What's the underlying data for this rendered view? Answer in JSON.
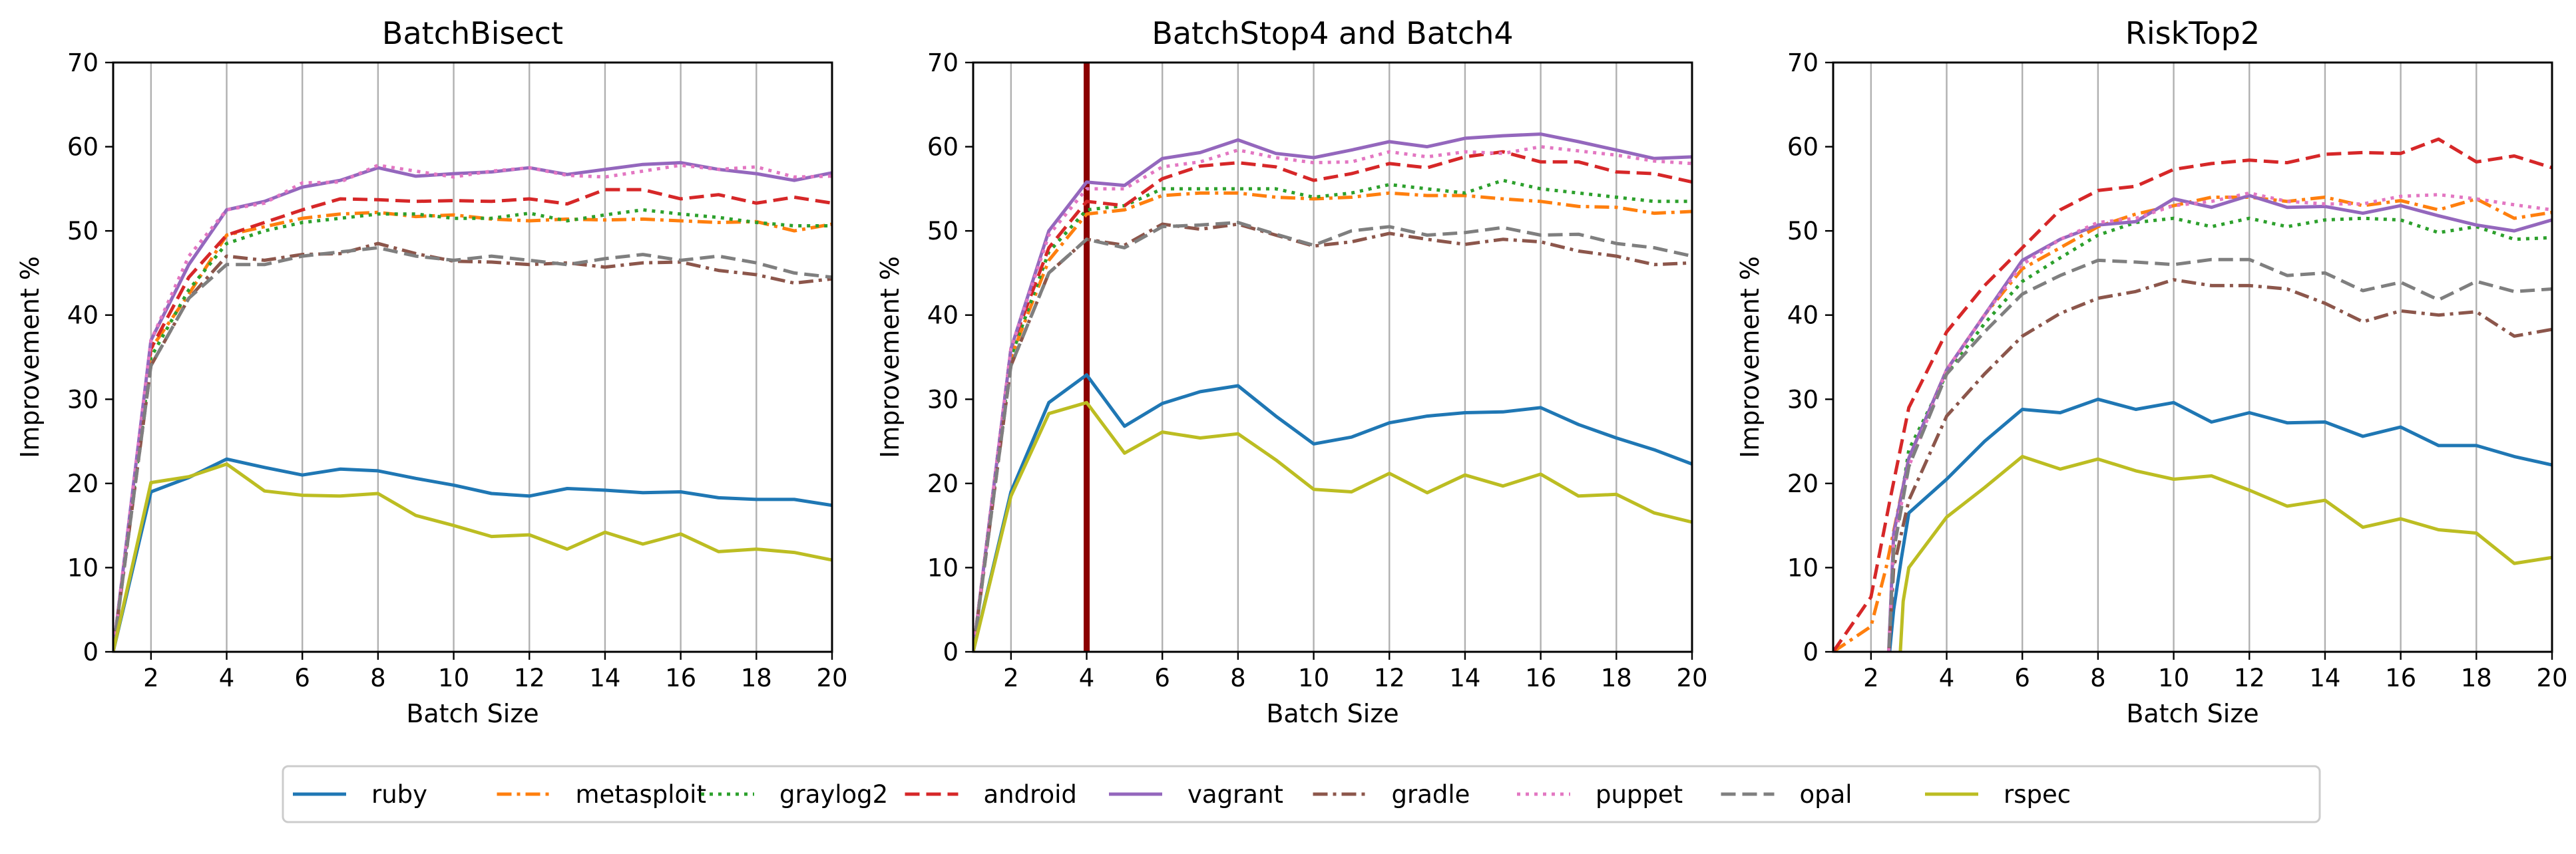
{
  "colors": {
    "ruby": "#1f77b4",
    "metasploit": "#ff7f0e",
    "graylog2": "#2ca02c",
    "android": "#d62728",
    "vagrant": "#9467bd",
    "gradle": "#8c564b",
    "puppet": "#e377c2",
    "opal": "#7f7f7f",
    "rspec": "#bcbd22"
  },
  "styles": {
    "ruby": "solid",
    "metasploit": "dashdot",
    "graylog2": "dotted",
    "android": "dashed",
    "vagrant": "solid",
    "gradle": "dashdot",
    "puppet": "dotted",
    "opal": "dashed",
    "rspec": "solid"
  },
  "legend": [
    "ruby",
    "metasploit",
    "graylog2",
    "android",
    "vagrant",
    "gradle",
    "puppet",
    "opal",
    "rspec"
  ],
  "chart_data": [
    {
      "type": "line",
      "title": "BatchBisect",
      "xlabel": "Batch Size",
      "ylabel": "Improvement %",
      "xlim": [
        1,
        20
      ],
      "ylim": [
        0,
        70
      ],
      "xticks": [
        2,
        4,
        6,
        8,
        10,
        12,
        14,
        16,
        18,
        20
      ],
      "yticks": [
        0,
        10,
        20,
        30,
        40,
        50,
        60,
        70
      ],
      "grid": "vertical",
      "x": [
        1,
        2,
        3,
        4,
        5,
        6,
        7,
        8,
        9,
        10,
        11,
        12,
        13,
        14,
        15,
        16,
        17,
        18,
        19,
        20
      ],
      "series": [
        {
          "name": "ruby",
          "values": [
            0,
            19,
            20.7,
            22.9,
            21.9,
            21,
            21.7,
            21.5,
            20.6,
            19.8,
            18.8,
            18.5,
            19.4,
            19.2,
            18.9,
            19,
            18.3,
            18.1,
            18.1,
            17.4
          ]
        },
        {
          "name": "metasploit",
          "values": [
            0,
            36,
            42.5,
            49.5,
            50.5,
            51.5,
            52,
            52.2,
            51.7,
            51.9,
            51.4,
            51.2,
            51.4,
            51.3,
            51.4,
            51.2,
            51,
            51.1,
            50,
            50.8
          ]
        },
        {
          "name": "graylog2",
          "values": [
            0,
            35,
            43,
            48.5,
            50,
            51,
            51.5,
            52,
            52,
            51.5,
            51.5,
            52.1,
            51.2,
            51.9,
            52.5,
            52,
            51.6,
            51,
            50.6,
            50.6
          ]
        },
        {
          "name": "android",
          "values": [
            0,
            36,
            44.5,
            49.5,
            51,
            52.5,
            53.8,
            53.7,
            53.5,
            53.6,
            53.5,
            53.8,
            53.2,
            54.9,
            54.9,
            53.8,
            54.3,
            53.3,
            54,
            53.3
          ]
        },
        {
          "name": "vagrant",
          "values": [
            0,
            37,
            46,
            52.5,
            53.5,
            55.2,
            56,
            57.5,
            56.5,
            56.8,
            57,
            57.5,
            56.7,
            57.3,
            57.9,
            58.1,
            57.3,
            56.8,
            56,
            56.9
          ]
        },
        {
          "name": "gradle",
          "values": [
            0,
            34,
            42,
            47,
            46.5,
            47.2,
            47.3,
            48.5,
            47.3,
            46.4,
            46.3,
            46,
            46.2,
            45.7,
            46.2,
            46.3,
            45.3,
            44.8,
            43.8,
            44.3
          ]
        },
        {
          "name": "puppet",
          "values": [
            0,
            37,
            47,
            52.5,
            53.3,
            55.7,
            55.8,
            57.8,
            57.1,
            56.4,
            57.1,
            57.5,
            56.6,
            56.4,
            57.1,
            57.8,
            57.3,
            57.6,
            56.4,
            56.5
          ]
        },
        {
          "name": "opal",
          "values": [
            0,
            34,
            42,
            46,
            46,
            47,
            47.5,
            48,
            47,
            46.5,
            47,
            46.5,
            46,
            46.7,
            47.2,
            46.5,
            47,
            46.2,
            45,
            44.5
          ]
        },
        {
          "name": "rspec",
          "values": [
            0,
            20.1,
            20.8,
            22.3,
            19.1,
            18.6,
            18.5,
            18.8,
            16.2,
            15,
            13.7,
            13.9,
            12.2,
            14.2,
            12.8,
            14,
            11.9,
            12.2,
            11.8,
            10.9
          ]
        }
      ]
    },
    {
      "type": "line",
      "title": "BatchStop4 and Batch4",
      "xlabel": "Batch Size",
      "ylabel": "Improvement %",
      "xlim": [
        1,
        20
      ],
      "ylim": [
        0,
        70
      ],
      "xticks": [
        2,
        4,
        6,
        8,
        10,
        12,
        14,
        16,
        18,
        20
      ],
      "yticks": [
        0,
        10,
        20,
        30,
        40,
        50,
        60,
        70
      ],
      "grid": "vertical",
      "vline": 4,
      "x": [
        1,
        2,
        3,
        4,
        5,
        6,
        7,
        8,
        9,
        10,
        11,
        12,
        13,
        14,
        15,
        16,
        17,
        18,
        19,
        20
      ],
      "series": [
        {
          "name": "ruby",
          "values": [
            0,
            19,
            29.6,
            32.9,
            26.8,
            29.5,
            30.9,
            31.6,
            28,
            24.7,
            25.5,
            27.2,
            28,
            28.4,
            28.5,
            29,
            27,
            25.4,
            24,
            22.3
          ]
        },
        {
          "name": "metasploit",
          "values": [
            0,
            35,
            46.5,
            52,
            52.5,
            54.2,
            54.5,
            54.5,
            54,
            53.8,
            54,
            54.5,
            54.2,
            54.2,
            53.8,
            53.5,
            52.9,
            52.8,
            52.1,
            52.3
          ]
        },
        {
          "name": "graylog2",
          "values": [
            0,
            35,
            47.5,
            52.5,
            53,
            55,
            55,
            55,
            55,
            54,
            54.5,
            55.5,
            55,
            54.5,
            56,
            55,
            54.5,
            54,
            53.5,
            53.5
          ]
        },
        {
          "name": "android",
          "values": [
            0,
            36,
            48,
            53.5,
            53,
            56.2,
            57.7,
            58.1,
            57.6,
            56,
            56.8,
            58,
            57.5,
            58.8,
            59.4,
            58.2,
            58.2,
            57,
            56.8,
            55.8
          ]
        },
        {
          "name": "vagrant",
          "values": [
            0,
            36,
            50,
            55.8,
            55.4,
            58.6,
            59.3,
            60.8,
            59.2,
            58.7,
            59.6,
            60.6,
            60,
            61,
            61.3,
            61.5,
            60.6,
            59.6,
            58.6,
            58.8
          ]
        },
        {
          "name": "gradle",
          "values": [
            0,
            34,
            45,
            49,
            48.3,
            50.8,
            50.2,
            50.8,
            49.5,
            48.2,
            48.7,
            49.7,
            49,
            48.4,
            49,
            48.7,
            47.6,
            47,
            46,
            46.2
          ]
        },
        {
          "name": "puppet",
          "values": [
            0,
            36,
            49.5,
            55,
            55,
            57.6,
            58.2,
            59.6,
            58.7,
            58.1,
            58.2,
            59.4,
            58.8,
            59.4,
            59.2,
            60,
            59.5,
            59,
            58.3,
            58
          ]
        },
        {
          "name": "opal",
          "values": [
            0,
            34,
            45,
            49,
            48,
            50.5,
            50.7,
            51,
            49.6,
            48.3,
            50,
            50.5,
            49.5,
            49.8,
            50.4,
            49.5,
            49.6,
            48.5,
            48,
            47
          ]
        },
        {
          "name": "rspec",
          "values": [
            0,
            18.5,
            28.3,
            29.6,
            23.6,
            26.1,
            25.4,
            25.9,
            22.8,
            19.3,
            19,
            21.2,
            18.9,
            21,
            19.7,
            21.1,
            18.5,
            18.7,
            16.5,
            15.4
          ]
        }
      ]
    },
    {
      "type": "line",
      "title": "RiskTop2",
      "xlabel": "Batch Size",
      "ylabel": "Improvement %",
      "xlim": [
        1,
        20
      ],
      "ylim": [
        0,
        70
      ],
      "xticks": [
        2,
        4,
        6,
        8,
        10,
        12,
        14,
        16,
        18,
        20
      ],
      "yticks": [
        0,
        10,
        20,
        30,
        40,
        50,
        60,
        70
      ],
      "grid": "vertical",
      "x": [
        1,
        1.5,
        2,
        2.3,
        2.7,
        3,
        4,
        5,
        6,
        7,
        8,
        9,
        10,
        11,
        12,
        13,
        14,
        15,
        16,
        17,
        18,
        19,
        20
      ],
      "series": [
        {
          "name": "ruby",
          "x": [
            2.45,
            2.6,
            2.8,
            3,
            4,
            5,
            6,
            7,
            8,
            9,
            10,
            11,
            12,
            13,
            14,
            15,
            16,
            17,
            18,
            19,
            20
          ],
          "values": [
            -2,
            5,
            11,
            16.5,
            20.5,
            25,
            28.8,
            28.4,
            30,
            28.8,
            29.6,
            27.3,
            28.4,
            27.2,
            27.3,
            25.6,
            26.7,
            24.5,
            24.5,
            23.2,
            22.2
          ]
        },
        {
          "name": "metasploit",
          "x": [
            1,
            2,
            2.4,
            3,
            4,
            5,
            6,
            7,
            8,
            9,
            10,
            11,
            12,
            13,
            14,
            15,
            16,
            17,
            18,
            19,
            20
          ],
          "values": [
            0,
            3,
            10,
            23,
            33.5,
            40,
            45.5,
            48,
            50.5,
            52,
            53,
            54,
            54,
            53.5,
            54,
            53,
            53.6,
            52.5,
            53.8,
            51.5,
            52.2
          ]
        },
        {
          "name": "graylog2",
          "x": [
            2.45,
            2.6,
            3,
            4,
            5,
            6,
            7,
            8,
            9,
            10,
            11,
            12,
            13,
            14,
            15,
            16,
            17,
            18,
            19,
            20
          ],
          "values": [
            -2,
            12,
            24,
            33,
            39,
            44,
            46.8,
            49.5,
            51,
            51.5,
            50.5,
            51.5,
            50.5,
            51.3,
            51.5,
            51.3,
            49.8,
            50.5,
            49,
            49.2
          ]
        },
        {
          "name": "android",
          "x": [
            1,
            2,
            2.5,
            3,
            4,
            5,
            6,
            7,
            8,
            9,
            10,
            11,
            12,
            13,
            14,
            15,
            16,
            17,
            18,
            19,
            20
          ],
          "values": [
            0,
            6.5,
            18,
            29,
            38,
            43.5,
            48,
            52.5,
            54.8,
            55.3,
            57.3,
            58,
            58.4,
            58.1,
            59.1,
            59.3,
            59.2,
            60.9,
            58.2,
            58.9,
            57.5
          ]
        },
        {
          "name": "vagrant",
          "x": [
            2.45,
            2.6,
            3,
            4,
            5,
            6,
            7,
            8,
            9,
            10,
            11,
            12,
            13,
            14,
            15,
            16,
            17,
            18,
            19,
            20
          ],
          "values": [
            -2,
            14,
            23,
            33.5,
            40,
            46.5,
            49,
            50.7,
            51.1,
            53.8,
            52.8,
            54.2,
            52.8,
            52.9,
            52.1,
            53,
            51.8,
            50.7,
            50,
            51.3
          ]
        },
        {
          "name": "gradle",
          "x": [
            2.45,
            2.6,
            3,
            4,
            5,
            6,
            7,
            8,
            9,
            10,
            11,
            12,
            13,
            14,
            15,
            16,
            17,
            18,
            19,
            20
          ],
          "values": [
            -2,
            10,
            18,
            28,
            33,
            37.5,
            40.2,
            42,
            42.8,
            44.2,
            43.5,
            43.5,
            43.1,
            41.4,
            39.2,
            40.5,
            40,
            40.4,
            37.5,
            38.3
          ]
        },
        {
          "name": "puppet",
          "x": [
            2.45,
            2.6,
            3,
            4,
            5,
            6,
            7,
            8,
            9,
            10,
            11,
            12,
            13,
            14,
            15,
            16,
            17,
            18,
            19,
            20
          ],
          "values": [
            -2,
            13,
            22,
            33.5,
            40,
            46,
            49,
            51,
            51.5,
            53,
            53.5,
            54.5,
            53.5,
            53.2,
            53.2,
            54.1,
            54.3,
            53.8,
            53.1,
            52.5
          ]
        },
        {
          "name": "opal",
          "x": [
            2.45,
            2.6,
            3,
            4,
            5,
            6,
            7,
            8,
            9,
            10,
            11,
            12,
            13,
            14,
            15,
            16,
            17,
            18,
            19,
            20
          ],
          "values": [
            -2,
            12,
            22,
            33,
            38,
            42.5,
            44.7,
            46.5,
            46.3,
            46,
            46.6,
            46.6,
            44.7,
            45,
            42.9,
            43.9,
            41.8,
            44,
            42.8,
            43.1
          ]
        },
        {
          "name": "rspec",
          "x": [
            2.75,
            2.85,
            3,
            4,
            5,
            6,
            7,
            8,
            9,
            10,
            11,
            12,
            13,
            14,
            15,
            16,
            17,
            18,
            19,
            20
          ],
          "values": [
            -2,
            6,
            10,
            16,
            19.5,
            23.2,
            21.7,
            22.9,
            21.5,
            20.5,
            20.9,
            19.2,
            17.3,
            18,
            14.8,
            15.8,
            14.5,
            14.1,
            10.5,
            11.2
          ]
        }
      ]
    }
  ]
}
